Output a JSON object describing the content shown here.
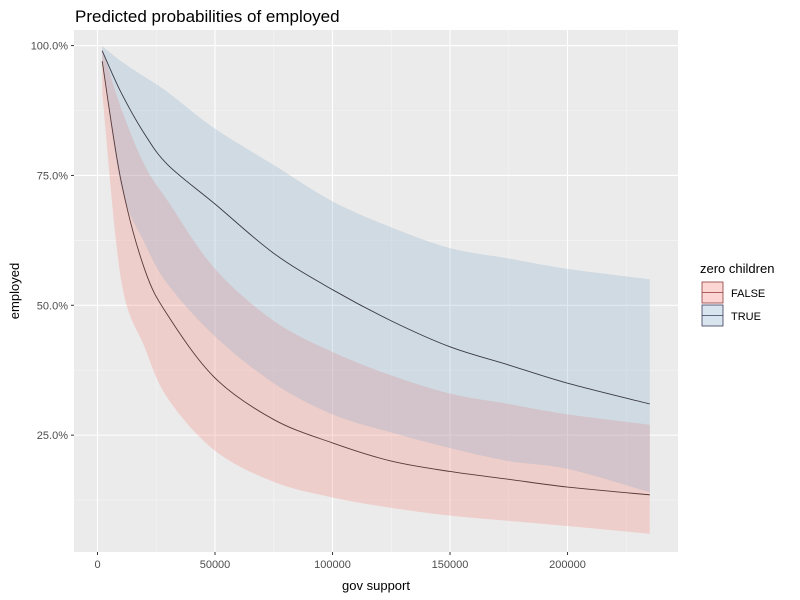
{
  "chart_data": {
    "type": "line",
    "title": "Predicted probabilities of employed",
    "xlabel": "gov support",
    "ylabel": "employed",
    "xlim": [
      -10000,
      247000
    ],
    "ylim": [
      0.025,
      1.03
    ],
    "x_ticks": [
      0,
      50000,
      100000,
      150000,
      200000
    ],
    "x_tick_labels": [
      "0",
      "50000",
      "100000",
      "150000",
      "200000"
    ],
    "y_ticks": [
      0.25,
      0.5,
      0.75,
      1.0
    ],
    "y_tick_labels": [
      "25.0%",
      "50.0%",
      "75.0%",
      "100.0%"
    ],
    "grid": true,
    "legend": {
      "title": "zero children",
      "position": "right",
      "entries": [
        {
          "label": "FALSE",
          "fill": "#F8766D",
          "line": "#8b3a3a"
        },
        {
          "label": "TRUE",
          "fill": "#7FA9C9",
          "line": "#3a3a5a"
        }
      ]
    },
    "series": [
      {
        "name": "FALSE",
        "color": "#F8766D",
        "line_color": "#5a3a3a",
        "x": [
          2000,
          10000,
          20000,
          30000,
          50000,
          75000,
          100000,
          125000,
          150000,
          175000,
          200000,
          235000
        ],
        "y": [
          0.97,
          0.74,
          0.57,
          0.48,
          0.36,
          0.28,
          0.235,
          0.2,
          0.18,
          0.165,
          0.15,
          0.135
        ],
        "lower": [
          0.91,
          0.55,
          0.42,
          0.32,
          0.22,
          0.16,
          0.13,
          0.11,
          0.095,
          0.085,
          0.075,
          0.06
        ],
        "upper": [
          0.995,
          0.88,
          0.77,
          0.7,
          0.57,
          0.47,
          0.41,
          0.365,
          0.33,
          0.31,
          0.29,
          0.27
        ]
      },
      {
        "name": "TRUE",
        "color": "#7FA9C9",
        "line_color": "#3a3a4a",
        "x": [
          2000,
          10000,
          20000,
          30000,
          50000,
          75000,
          100000,
          125000,
          150000,
          175000,
          200000,
          235000
        ],
        "y": [
          0.99,
          0.91,
          0.83,
          0.77,
          0.695,
          0.6,
          0.53,
          0.47,
          0.42,
          0.385,
          0.35,
          0.31
        ],
        "lower": [
          0.97,
          0.73,
          0.62,
          0.54,
          0.44,
          0.35,
          0.29,
          0.255,
          0.225,
          0.2,
          0.185,
          0.14
        ],
        "upper": [
          0.999,
          0.97,
          0.94,
          0.91,
          0.84,
          0.77,
          0.7,
          0.65,
          0.61,
          0.59,
          0.57,
          0.55
        ]
      }
    ]
  }
}
